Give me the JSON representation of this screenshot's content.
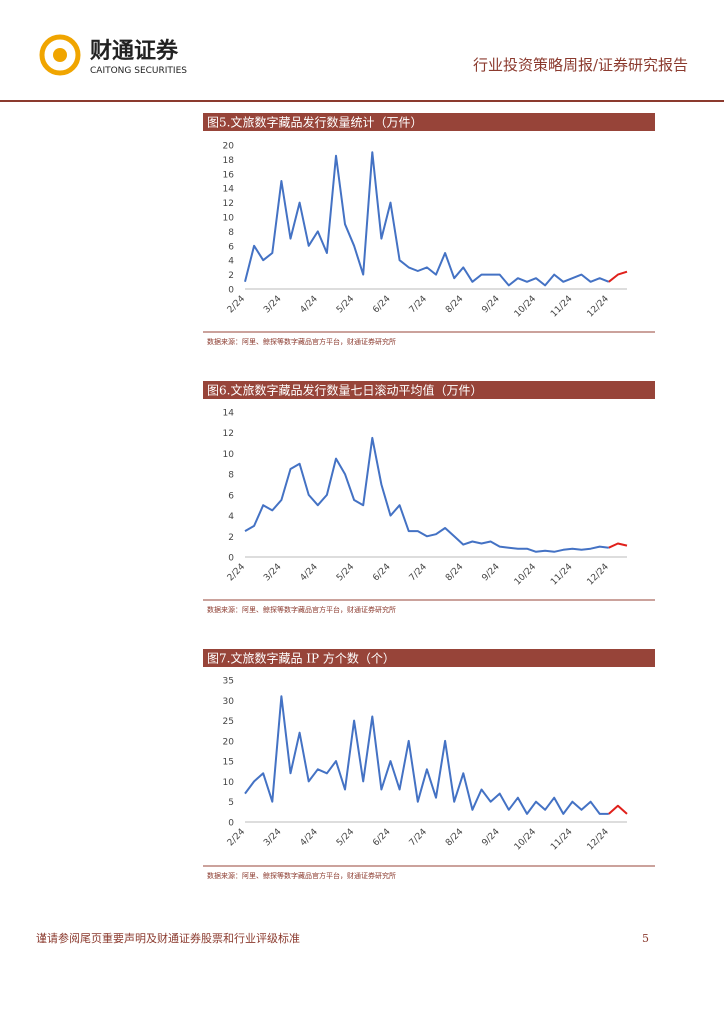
{
  "header": {
    "logo_cn": "财通证券",
    "logo_en": "CAITONG SECURITIES",
    "report_type": "行业投资策略周报/证券研究报告"
  },
  "footer": {
    "disclaimer": "谨请参阅尾页重要声明及财通证券股票和行业评级标准",
    "page": "5"
  },
  "chart_data": [
    {
      "type": "line",
      "title": "图5.文旅数字藏品发行数量统计（万件）",
      "source": "数据来源：阿里、鲸探等数字藏品官方平台，财通证券研究所",
      "categories": [
        "2/24",
        null,
        null,
        null,
        "3/24",
        null,
        null,
        null,
        "4/24",
        null,
        null,
        null,
        "5/24",
        null,
        null,
        null,
        "6/24",
        null,
        null,
        null,
        "7/24",
        null,
        null,
        null,
        "8/24",
        null,
        null,
        null,
        "9/24",
        null,
        null,
        null,
        "10/24",
        null,
        null,
        null,
        "11/24",
        null,
        null,
        null,
        "12/24",
        null,
        null
      ],
      "series": [
        {
          "name": "blue",
          "color": "#4472c4",
          "values": [
            1,
            6,
            4,
            5,
            15,
            7,
            12,
            6,
            8,
            5,
            18.5,
            9,
            6,
            2,
            19,
            7,
            12,
            4,
            3,
            2.5,
            3,
            2,
            5,
            1.5,
            3,
            1,
            2,
            2,
            2,
            0.5,
            1.5,
            1,
            1.5,
            0.5,
            2,
            1,
            1.5,
            2,
            1,
            1.5,
            1,
            null,
            null
          ]
        },
        {
          "name": "red",
          "color": "#e0201b",
          "values": [
            null,
            null,
            null,
            null,
            null,
            null,
            null,
            null,
            null,
            null,
            null,
            null,
            null,
            null,
            null,
            null,
            null,
            null,
            null,
            null,
            null,
            null,
            null,
            null,
            null,
            null,
            null,
            null,
            null,
            null,
            null,
            null,
            null,
            null,
            null,
            null,
            null,
            null,
            null,
            null,
            1,
            2,
            2.4
          ]
        }
      ],
      "ylim": [
        0,
        20
      ],
      "yticks": [
        0,
        2,
        4,
        6,
        8,
        10,
        12,
        14,
        16,
        18,
        20
      ]
    },
    {
      "type": "line",
      "title": "图6.文旅数字藏品发行数量七日滚动平均值（万件）",
      "source": "数据来源：阿里、鲸探等数字藏品官方平台，财通证券研究所",
      "categories": [
        "2/24",
        null,
        null,
        null,
        "3/24",
        null,
        null,
        null,
        "4/24",
        null,
        null,
        null,
        "5/24",
        null,
        null,
        null,
        "6/24",
        null,
        null,
        null,
        "7/24",
        null,
        null,
        null,
        "8/24",
        null,
        null,
        null,
        "9/24",
        null,
        null,
        null,
        "10/24",
        null,
        null,
        null,
        "11/24",
        null,
        null,
        null,
        "12/24",
        null,
        null
      ],
      "series": [
        {
          "name": "blue",
          "color": "#4472c4",
          "values": [
            2.5,
            3,
            5,
            4.5,
            5.5,
            8.5,
            9,
            6,
            5,
            6,
            9.5,
            8,
            5.5,
            5,
            11.5,
            7,
            4,
            5,
            2.5,
            2.5,
            2,
            2.2,
            2.8,
            2,
            1.2,
            1.5,
            1.3,
            1.5,
            1,
            0.9,
            0.8,
            0.8,
            0.5,
            0.6,
            0.5,
            0.7,
            0.8,
            0.7,
            0.8,
            1,
            0.9,
            null,
            null
          ]
        },
        {
          "name": "red",
          "color": "#e0201b",
          "values": [
            null,
            null,
            null,
            null,
            null,
            null,
            null,
            null,
            null,
            null,
            null,
            null,
            null,
            null,
            null,
            null,
            null,
            null,
            null,
            null,
            null,
            null,
            null,
            null,
            null,
            null,
            null,
            null,
            null,
            null,
            null,
            null,
            null,
            null,
            null,
            null,
            null,
            null,
            null,
            null,
            0.9,
            1.3,
            1.1
          ]
        }
      ],
      "ylim": [
        0,
        14
      ],
      "yticks": [
        0,
        2,
        4,
        6,
        8,
        10,
        12,
        14
      ]
    },
    {
      "type": "line",
      "title": "图7.文旅数字藏品 IP 方个数（个）",
      "source": "数据来源：阿里、鲸探等数字藏品官方平台，财通证券研究所",
      "categories": [
        "2/24",
        null,
        null,
        null,
        "3/24",
        null,
        null,
        null,
        "4/24",
        null,
        null,
        null,
        "5/24",
        null,
        null,
        null,
        "6/24",
        null,
        null,
        null,
        "7/24",
        null,
        null,
        null,
        "8/24",
        null,
        null,
        null,
        "9/24",
        null,
        null,
        null,
        "10/24",
        null,
        null,
        null,
        "11/24",
        null,
        null,
        null,
        "12/24",
        null,
        null
      ],
      "series": [
        {
          "name": "blue",
          "color": "#4472c4",
          "values": [
            7,
            10,
            12,
            5,
            31,
            12,
            22,
            10,
            13,
            12,
            15,
            8,
            25,
            10,
            26,
            8,
            15,
            8,
            20,
            5,
            13,
            6,
            20,
            5,
            12,
            3,
            8,
            5,
            7,
            3,
            6,
            2,
            5,
            3,
            6,
            2,
            5,
            3,
            5,
            2,
            2,
            null,
            null
          ]
        },
        {
          "name": "red",
          "color": "#e0201b",
          "values": [
            null,
            null,
            null,
            null,
            null,
            null,
            null,
            null,
            null,
            null,
            null,
            null,
            null,
            null,
            null,
            null,
            null,
            null,
            null,
            null,
            null,
            null,
            null,
            null,
            null,
            null,
            null,
            null,
            null,
            null,
            null,
            null,
            null,
            null,
            null,
            null,
            null,
            null,
            null,
            null,
            2,
            4,
            2
          ]
        }
      ],
      "ylim": [
        0,
        35
      ],
      "yticks": [
        0,
        5,
        10,
        15,
        20,
        25,
        30,
        35
      ]
    }
  ]
}
